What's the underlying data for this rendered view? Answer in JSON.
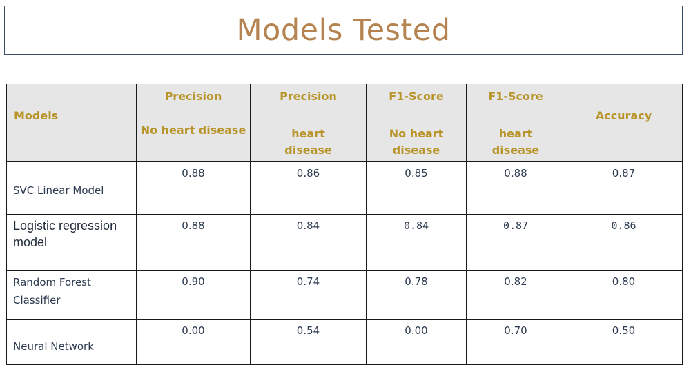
{
  "title": "Models Tested",
  "table": {
    "headers": [
      {
        "lines": [
          "Models"
        ]
      },
      {
        "lines": [
          "Precision",
          "No heart disease"
        ]
      },
      {
        "lines": [
          "Precision",
          "heart",
          "disease"
        ]
      },
      {
        "lines": [
          "F1-Score",
          "No heart",
          "disease"
        ]
      },
      {
        "lines": [
          "F1-Score",
          "heart",
          "disease"
        ]
      },
      {
        "lines": [
          "Accuracy"
        ]
      }
    ],
    "rows": [
      {
        "name": "SVC Linear Model",
        "values": [
          "0.88",
          "0.86",
          "0.85",
          "0.88",
          "0.87"
        ]
      },
      {
        "name": "Logistic regression model",
        "values": [
          "0.88",
          "0.84",
          "0.84",
          "0.87",
          "0.86"
        ]
      },
      {
        "name": "Random Forest Classifier",
        "values": [
          "0.90",
          "0.74",
          "0.78",
          "0.82",
          "0.80"
        ]
      },
      {
        "name": "Neural Network",
        "values": [
          "0.00",
          "0.54",
          "0.00",
          "0.70",
          "0.50"
        ]
      }
    ]
  },
  "colors": {
    "title": "#b5834f",
    "header_text": "#b8952a",
    "header_bg": "#e6e6e6",
    "border": "#3b4f6b"
  }
}
